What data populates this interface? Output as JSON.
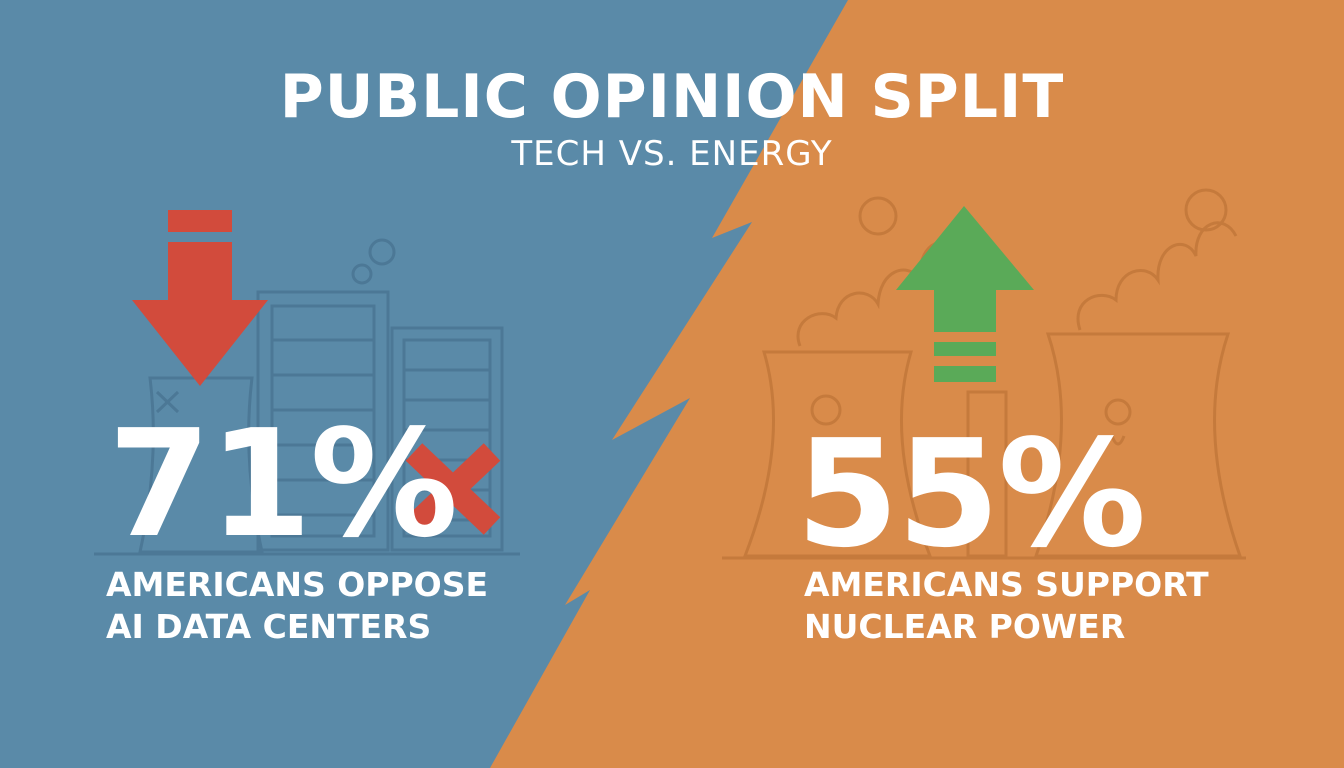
{
  "title": "PUBLIC OPINION SPLIT",
  "subtitle": "TECH VS. ENERGY",
  "left": {
    "percent": "71%",
    "caption_line1": "AMERICANS OPPOSE",
    "caption_line2": "AI DATA CENTERS",
    "icon": "down-arrow-icon",
    "mark": "x-mark-icon"
  },
  "right": {
    "percent": "55%",
    "caption_line1": "AMERICANS SUPPORT",
    "caption_line2": "NUCLEAR POWER",
    "icon": "up-arrow-icon"
  },
  "colors": {
    "left_bg": "#5a8aa8",
    "right_bg": "#d98b4a",
    "oppose": "#d24b3c",
    "support": "#5aaa58"
  }
}
